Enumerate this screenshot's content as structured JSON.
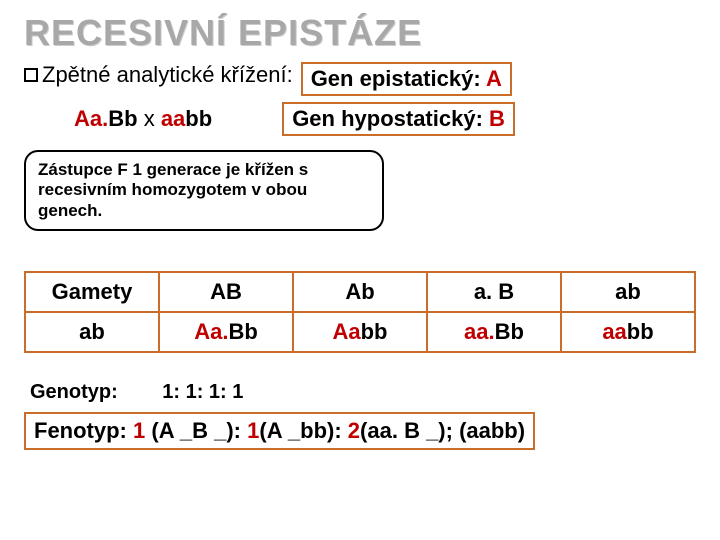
{
  "title": "RECESIVNÍ EPISTÁZE",
  "checkbox_label": "Zpětné analytické křížení:",
  "gen_epi": {
    "label": "Gen epistatický:",
    "allele": "A"
  },
  "cross": {
    "p1a": "Aa.",
    "p1b": "Bb",
    "x": " x ",
    "p2a": "aa",
    "p2b": "bb"
  },
  "gen_hyp": {
    "label": "Gen hypostatický:",
    "allele": "B"
  },
  "note": "Zástupce F 1 generace je křížen s recesivním homozygotem v obou genech.",
  "table": {
    "header": [
      "Gamety",
      "AB",
      "Ab",
      "a. B",
      "ab"
    ],
    "row": {
      "gamete": "ab",
      "cells": [
        {
          "a": "Aa.",
          "b": "Bb"
        },
        {
          "a": "Aa",
          "b": "bb"
        },
        {
          "a": "aa.",
          "b": "Bb"
        },
        {
          "a": "aa",
          "b": "bb"
        }
      ]
    }
  },
  "genotyp": {
    "label": "Genotyp:",
    "ratio": "1: 1: 1: 1"
  },
  "fenotyp": {
    "label": "Fenotyp:",
    "parts": [
      {
        "r": "1",
        "t": " (A _B _):"
      },
      {
        "r": "1",
        "t": "(A _bb):"
      },
      {
        "r": "2",
        "t": "(aa. B _); (aabb)"
      }
    ]
  }
}
